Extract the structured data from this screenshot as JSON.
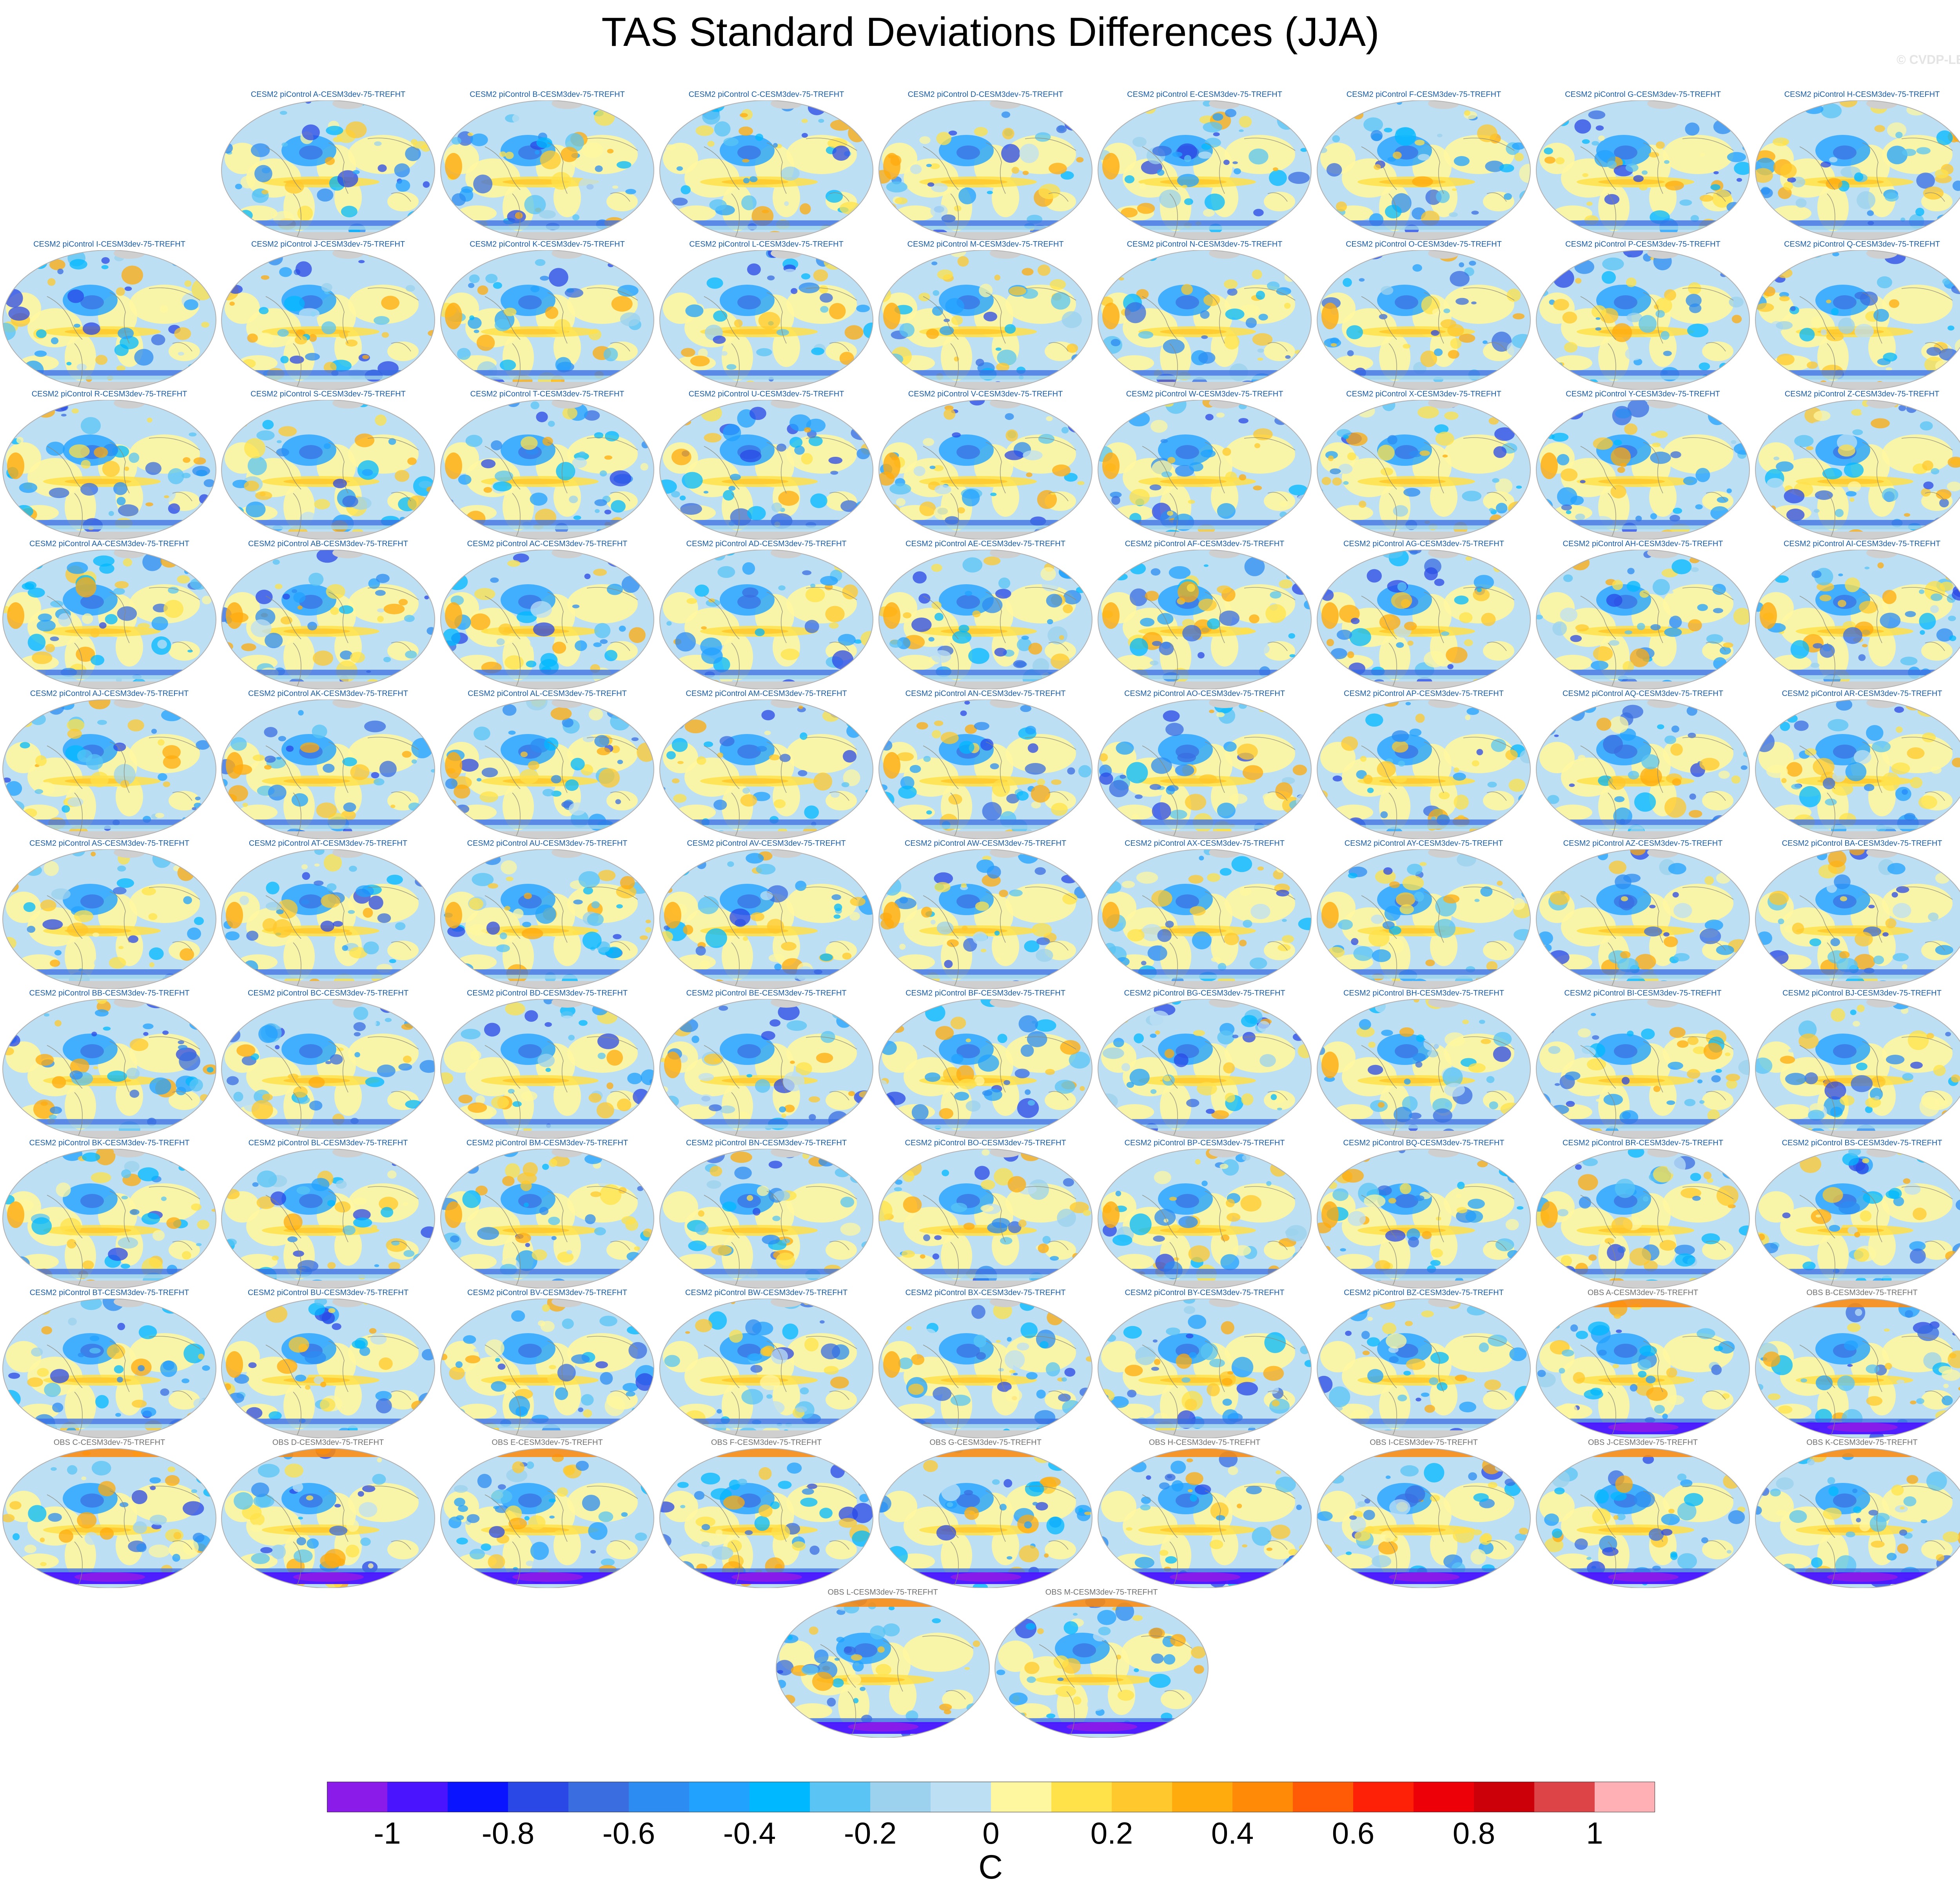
{
  "title": "TAS Standard Deviations Differences (JJA)",
  "credit": "© CVDP-LE",
  "panels": [
    "CESM2 piControl A-CESM3dev-75-TREFHT",
    "CESM2 piControl B-CESM3dev-75-TREFHT",
    "CESM2 piControl C-CESM3dev-75-TREFHT",
    "CESM2 piControl D-CESM3dev-75-TREFHT",
    "CESM2 piControl E-CESM3dev-75-TREFHT",
    "CESM2 piControl F-CESM3dev-75-TREFHT",
    "CESM2 piControl G-CESM3dev-75-TREFHT",
    "CESM2 piControl H-CESM3dev-75-TREFHT",
    "CESM2 piControl I-CESM3dev-75-TREFHT",
    "CESM2 piControl J-CESM3dev-75-TREFHT",
    "CESM2 piControl K-CESM3dev-75-TREFHT",
    "CESM2 piControl L-CESM3dev-75-TREFHT",
    "CESM2 piControl M-CESM3dev-75-TREFHT",
    "CESM2 piControl N-CESM3dev-75-TREFHT",
    "CESM2 piControl O-CESM3dev-75-TREFHT",
    "CESM2 piControl P-CESM3dev-75-TREFHT",
    "CESM2 piControl Q-CESM3dev-75-TREFHT",
    "CESM2 piControl R-CESM3dev-75-TREFHT",
    "CESM2 piControl S-CESM3dev-75-TREFHT",
    "CESM2 piControl T-CESM3dev-75-TREFHT",
    "CESM2 piControl U-CESM3dev-75-TREFHT",
    "CESM2 piControl V-CESM3dev-75-TREFHT",
    "CESM2 piControl W-CESM3dev-75-TREFHT",
    "CESM2 piControl X-CESM3dev-75-TREFHT",
    "CESM2 piControl Y-CESM3dev-75-TREFHT",
    "CESM2 piControl Z-CESM3dev-75-TREFHT",
    "CESM2 piControl AA-CESM3dev-75-TREFHT",
    "CESM2 piControl AB-CESM3dev-75-TREFHT",
    "CESM2 piControl AC-CESM3dev-75-TREFHT",
    "CESM2 piControl AD-CESM3dev-75-TREFHT",
    "CESM2 piControl AE-CESM3dev-75-TREFHT",
    "CESM2 piControl AF-CESM3dev-75-TREFHT",
    "CESM2 piControl AG-CESM3dev-75-TREFHT",
    "CESM2 piControl AH-CESM3dev-75-TREFHT",
    "CESM2 piControl AI-CESM3dev-75-TREFHT",
    "CESM2 piControl AJ-CESM3dev-75-TREFHT",
    "CESM2 piControl AK-CESM3dev-75-TREFHT",
    "CESM2 piControl AL-CESM3dev-75-TREFHT",
    "CESM2 piControl AM-CESM3dev-75-TREFHT",
    "CESM2 piControl AN-CESM3dev-75-TREFHT",
    "CESM2 piControl AO-CESM3dev-75-TREFHT",
    "CESM2 piControl AP-CESM3dev-75-TREFHT",
    "CESM2 piControl AQ-CESM3dev-75-TREFHT",
    "CESM2 piControl AR-CESM3dev-75-TREFHT",
    "CESM2 piControl AS-CESM3dev-75-TREFHT",
    "CESM2 piControl AT-CESM3dev-75-TREFHT",
    "CESM2 piControl AU-CESM3dev-75-TREFHT",
    "CESM2 piControl AV-CESM3dev-75-TREFHT",
    "CESM2 piControl AW-CESM3dev-75-TREFHT",
    "CESM2 piControl AX-CESM3dev-75-TREFHT",
    "CESM2 piControl AY-CESM3dev-75-TREFHT",
    "CESM2 piControl AZ-CESM3dev-75-TREFHT",
    "CESM2 piControl BA-CESM3dev-75-TREFHT",
    "CESM2 piControl BB-CESM3dev-75-TREFHT",
    "CESM2 piControl BC-CESM3dev-75-TREFHT",
    "CESM2 piControl BD-CESM3dev-75-TREFHT",
    "CESM2 piControl BE-CESM3dev-75-TREFHT",
    "CESM2 piControl BF-CESM3dev-75-TREFHT",
    "CESM2 piControl BG-CESM3dev-75-TREFHT",
    "CESM2 piControl BH-CESM3dev-75-TREFHT",
    "CESM2 piControl BI-CESM3dev-75-TREFHT",
    "CESM2 piControl BJ-CESM3dev-75-TREFHT",
    "CESM2 piControl BK-CESM3dev-75-TREFHT",
    "CESM2 piControl BL-CESM3dev-75-TREFHT",
    "CESM2 piControl BM-CESM3dev-75-TREFHT",
    "CESM2 piControl BN-CESM3dev-75-TREFHT",
    "CESM2 piControl BO-CESM3dev-75-TREFHT",
    "CESM2 piControl BP-CESM3dev-75-TREFHT",
    "CESM2 piControl BQ-CESM3dev-75-TREFHT",
    "CESM2 piControl BR-CESM3dev-75-TREFHT",
    "CESM2 piControl BS-CESM3dev-75-TREFHT",
    "CESM2 piControl BT-CESM3dev-75-TREFHT",
    "CESM2 piControl BU-CESM3dev-75-TREFHT",
    "CESM2 piControl BV-CESM3dev-75-TREFHT",
    "CESM2 piControl BW-CESM3dev-75-TREFHT",
    "CESM2 piControl BX-CESM3dev-75-TREFHT",
    "CESM2 piControl BY-CESM3dev-75-TREFHT",
    "CESM2 piControl BZ-CESM3dev-75-TREFHT",
    "OBS A-CESM3dev-75-TREFHT",
    "OBS B-CESM3dev-75-TREFHT",
    "OBS C-CESM3dev-75-TREFHT",
    "OBS D-CESM3dev-75-TREFHT",
    "OBS E-CESM3dev-75-TREFHT",
    "OBS F-CESM3dev-75-TREFHT",
    "OBS G-CESM3dev-75-TREFHT",
    "OBS H-CESM3dev-75-TREFHT",
    "OBS I-CESM3dev-75-TREFHT",
    "OBS J-CESM3dev-75-TREFHT",
    "OBS K-CESM3dev-75-TREFHT",
    "OBS L-CESM3dev-75-TREFHT",
    "OBS M-CESM3dev-75-TREFHT"
  ],
  "colorbar": {
    "unit": "C",
    "min": -1.1,
    "max": 1.1,
    "colors": [
      "#8a1be8",
      "#4a14ff",
      "#0a14ff",
      "#2a48e6",
      "#3a6ee0",
      "#2c8cf2",
      "#22a2ff",
      "#00b8ff",
      "#5ac4f4",
      "#9cd2ee",
      "#bcdff4",
      "#fff7a0",
      "#ffe14a",
      "#ffc82c",
      "#ffab0e",
      "#ff8a08",
      "#ff5a06",
      "#ff2008",
      "#ee0008",
      "#cc0008",
      "#dc4448",
      "#ffb0b4"
    ],
    "ticks": [
      {
        "value": -1,
        "label": "-1"
      },
      {
        "value": -0.8,
        "label": "-0.8"
      },
      {
        "value": -0.6,
        "label": "-0.6"
      },
      {
        "value": -0.4,
        "label": "-0.4"
      },
      {
        "value": -0.2,
        "label": "-0.2"
      },
      {
        "value": 0,
        "label": "0"
      },
      {
        "value": 0.2,
        "label": "0.2"
      },
      {
        "value": 0.4,
        "label": "0.4"
      },
      {
        "value": 0.6,
        "label": "0.6"
      },
      {
        "value": 0.8,
        "label": "0.8"
      },
      {
        "value": 1,
        "label": "1"
      }
    ]
  },
  "map_colors": {
    "ocean": "#bcdff4",
    "land": "#fff7a0",
    "ice": "#cfcfcf",
    "coast": "#8a8a7a",
    "border": "#b0b0b0"
  }
}
